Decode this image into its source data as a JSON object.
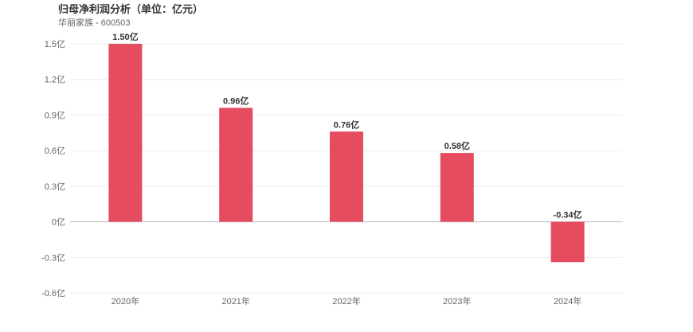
{
  "chart_data": {
    "type": "bar",
    "title": "归母净利润分析（单位：亿元）",
    "subtitle": "华丽家族 - 600503",
    "categories": [
      "2020年",
      "2021年",
      "2022年",
      "2023年",
      "2024年"
    ],
    "values": [
      1.5,
      0.96,
      0.76,
      0.58,
      -0.34
    ],
    "data_labels": [
      "1.50亿",
      "0.96亿",
      "0.76亿",
      "0.58亿",
      "-0.34亿"
    ],
    "y_ticks": [
      1.5,
      1.2,
      0.9,
      0.6,
      0.3,
      0,
      -0.3,
      -0.6
    ],
    "y_tick_labels": [
      "1.5亿",
      "1.2亿",
      "0.9亿",
      "0.6亿",
      "0.3亿",
      "0亿",
      "-0.3亿",
      "-0.6亿"
    ],
    "ylim": [
      -0.6,
      1.5
    ],
    "xlabel": "",
    "ylabel": "",
    "grid": true,
    "legend": "none",
    "colors": {
      "bar": "#e64c60",
      "grid": "#ececec",
      "zero_line": "#bbbbbb"
    }
  }
}
